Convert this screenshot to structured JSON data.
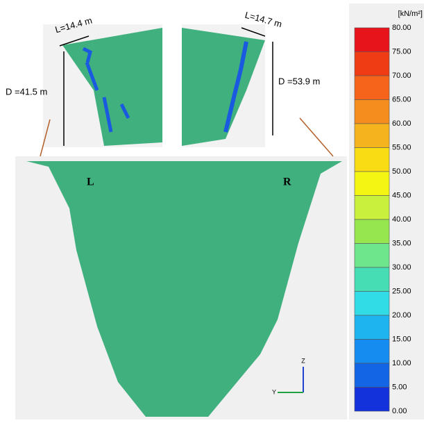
{
  "insets": {
    "left": {
      "width_label": "L=14.4 m",
      "depth_label": "D =41.5 m"
    },
    "right": {
      "width_label": "L=14.7 m",
      "depth_label": "D =53.9 m"
    }
  },
  "main_view": {
    "left_label": "L",
    "right_label": "R",
    "axis_z": "Z",
    "axis_y": "Y"
  },
  "legend": {
    "unit": "[kN/m²]",
    "ticks": [
      "80.00",
      "75.00",
      "70.00",
      "65.00",
      "60.00",
      "55.00",
      "50.00",
      "45.00",
      "40.00",
      "35.00",
      "30.00",
      "25.00",
      "20.00",
      "15.00",
      "10.00",
      "5.00",
      "0.00"
    ],
    "colors": [
      "#e8141c",
      "#f03c14",
      "#f5641a",
      "#f58c1e",
      "#f5b41e",
      "#fadc14",
      "#f5f514",
      "#c8f03c",
      "#96e650",
      "#6ee68c",
      "#46dcb4",
      "#32dce6",
      "#1eb4f0",
      "#148cf0",
      "#1464e6",
      "#1432dc"
    ]
  }
}
